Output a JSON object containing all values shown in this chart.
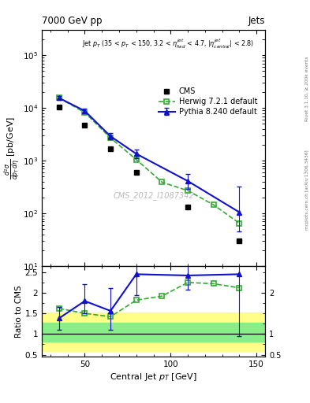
{
  "title_left": "7000 GeV pp",
  "title_right": "Jets",
  "watermark": "CMS_2012_I1087342",
  "ylabel_ratio": "Ratio to CMS",
  "xlabel": "Central Jet p_{T} [GeV]",
  "right_label_top": "Rivet 3.1.10, ≥ 200k events",
  "right_label_bot": "mcplots.cern.ch [arXiv:1306.3436]",
  "cms_x": [
    35,
    50,
    65,
    80,
    110,
    140
  ],
  "cms_y": [
    10500.0,
    4800,
    1700,
    590,
    130,
    30
  ],
  "herwig_x": [
    35,
    50,
    65,
    80,
    95,
    110,
    125,
    140
  ],
  "herwig_y": [
    15500.0,
    8200,
    2700,
    1050,
    390,
    270,
    145,
    65
  ],
  "pythia_x": [
    35,
    50,
    65,
    80,
    110,
    140
  ],
  "pythia_y": [
    15500.0,
    8800,
    2900,
    1350,
    410,
    105
  ],
  "pythia_yerr_lo": [
    1200,
    900,
    350,
    250,
    120,
    60
  ],
  "pythia_yerr_hi": [
    1500,
    1100,
    400,
    300,
    150,
    220
  ],
  "herwig_ratio_x": [
    35,
    50,
    65,
    80,
    95,
    110,
    125,
    140
  ],
  "herwig_ratio_y": [
    1.62,
    1.5,
    1.42,
    1.82,
    1.92,
    2.25,
    2.22,
    2.12
  ],
  "pythia_ratio_x": [
    35,
    50,
    65,
    80,
    110,
    140
  ],
  "pythia_ratio_y": [
    1.38,
    1.8,
    1.56,
    2.45,
    2.42,
    2.45
  ],
  "pythia_ratio_yerr_lo": [
    0.28,
    0.3,
    0.45,
    0.5,
    0.35,
    1.5
  ],
  "pythia_ratio_yerr_hi": [
    0.28,
    0.4,
    0.55,
    0.5,
    0.4,
    2.0
  ],
  "band_inner_lo": 0.82,
  "band_inner_hi": 1.28,
  "band_outer_lo": 0.58,
  "band_outer_hi": 1.53,
  "xlim": [
    25,
    155
  ],
  "ylim_main": [
    10,
    300000.0
  ],
  "ylim_ratio": [
    0.45,
    2.65
  ],
  "cms_color": "#000000",
  "herwig_color": "#33aa33",
  "pythia_color": "#1111cc",
  "band_inner_color": "#88ee88",
  "band_outer_color": "#ffff88",
  "fig_width": 3.93,
  "fig_height": 5.12,
  "dpi": 100
}
